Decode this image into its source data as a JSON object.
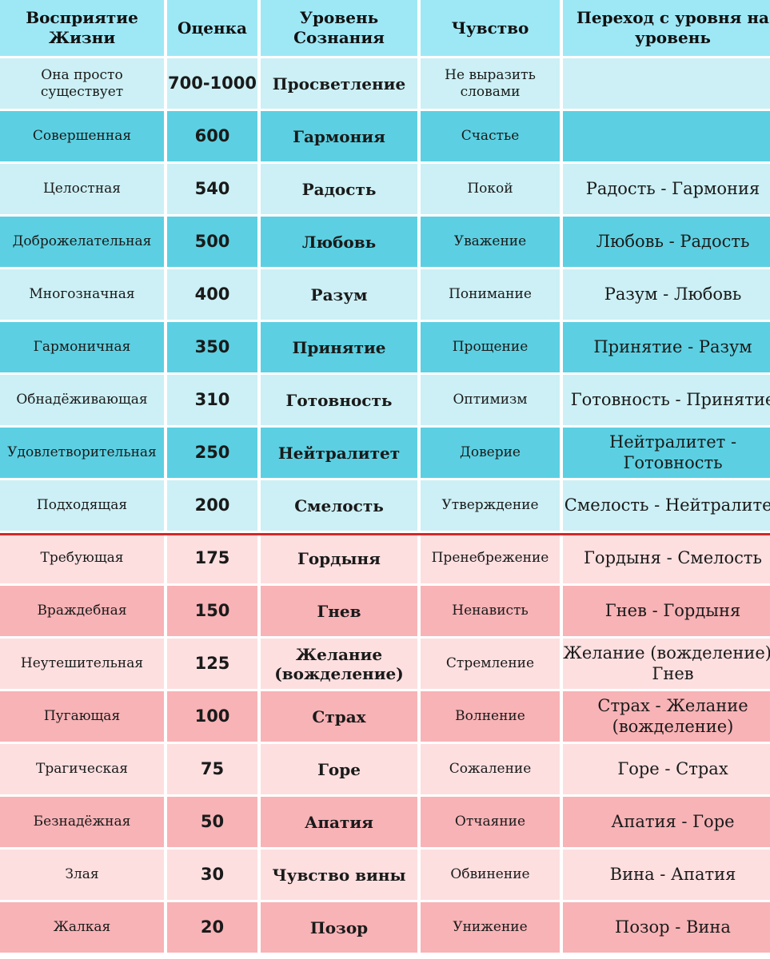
{
  "headers": {
    "perception": "Восприятие Жизни",
    "score": "Оценка",
    "level": "Уровень Сознания",
    "feeling": "Чувство",
    "transition": "Переход с уровня на уровень"
  },
  "colors": {
    "header": "#9ee8f6",
    "light_teal": "#ccf0f5",
    "teal": "#5cd0e2",
    "light_pink": "#fddfe0",
    "pink": "#f8b3b6",
    "divider": "#d12828"
  },
  "rows": [
    {
      "perception": "Она просто существует",
      "score": "700-1000",
      "level": "Просветление",
      "feeling": "Не выразить словами",
      "transition": ""
    },
    {
      "perception": "Совершенная",
      "score": "600",
      "level": "Гармония",
      "feeling": "Счастье",
      "transition": ""
    },
    {
      "perception": "Целостная",
      "score": "540",
      "level": "Радость",
      "feeling": "Покой",
      "transition": "Радость - Гармония"
    },
    {
      "perception": "Доброжелательная",
      "score": "500",
      "level": "Любовь",
      "feeling": "Уважение",
      "transition": "Любовь - Радость"
    },
    {
      "perception": "Многозначная",
      "score": "400",
      "level": "Разум",
      "feeling": "Понимание",
      "transition": "Разум - Любовь"
    },
    {
      "perception": "Гармоничная",
      "score": "350",
      "level": "Принятие",
      "feeling": "Прощение",
      "transition": "Принятие - Разум"
    },
    {
      "perception": "Обнадёживающая",
      "score": "310",
      "level": "Готовность",
      "feeling": "Оптимизм",
      "transition": "Готовность - Принятие"
    },
    {
      "perception": "Удовлетворительная",
      "score": "250",
      "level": "Нейтралитет",
      "feeling": "Доверие",
      "transition": "Нейтралитет - Готовность"
    },
    {
      "perception": "Подходящая",
      "score": "200",
      "level": "Смелость",
      "feeling": "Утверждение",
      "transition": "Смелость - Нейтралитет"
    },
    {
      "perception": "Требующая",
      "score": "175",
      "level": "Гордыня",
      "feeling": "Пренебрежение",
      "transition": "Гордыня - Смелость"
    },
    {
      "perception": "Враждебная",
      "score": "150",
      "level": "Гнев",
      "feeling": "Ненависть",
      "transition": "Гнев - Гордыня"
    },
    {
      "perception": "Неутешительная",
      "score": "125",
      "level": "Желание (вожделение)",
      "feeling": "Стремление",
      "transition": "Желание (вожделение) - Гнев"
    },
    {
      "perception": "Пугающая",
      "score": "100",
      "level": "Страх",
      "feeling": "Волнение",
      "transition": "Страх - Желание (вожделение)"
    },
    {
      "perception": "Трагическая",
      "score": "75",
      "level": "Горе",
      "feeling": "Сожаление",
      "transition": "Горе - Страх"
    },
    {
      "perception": "Безнадёжная",
      "score": "50",
      "level": "Апатия",
      "feeling": "Отчаяние",
      "transition": "Апатия - Горе"
    },
    {
      "perception": "Злая",
      "score": "30",
      "level": "Чувство вины",
      "feeling": "Обвинение",
      "transition": "Вина - Апатия"
    },
    {
      "perception": "Жалкая",
      "score": "20",
      "level": "Позор",
      "feeling": "Унижение",
      "transition": "Позор - Вина"
    }
  ]
}
